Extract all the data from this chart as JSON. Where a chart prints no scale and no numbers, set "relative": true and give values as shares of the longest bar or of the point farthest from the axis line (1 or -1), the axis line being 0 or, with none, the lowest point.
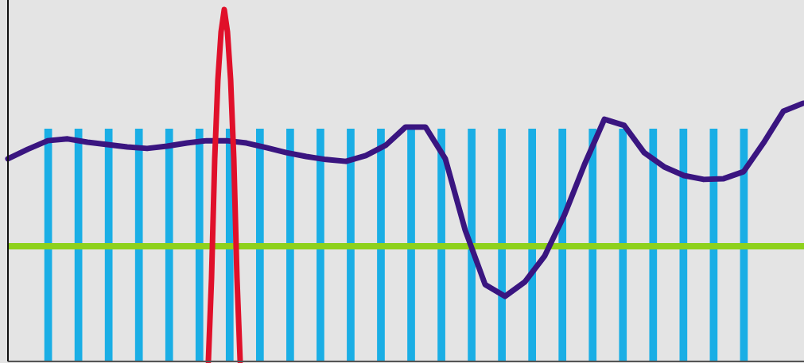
{
  "chart_data": [
    {
      "type": "bar",
      "relative": true,
      "color": "#1aaee5",
      "categories": [
        null,
        null,
        null,
        null,
        null,
        null,
        null,
        null,
        null,
        null,
        null,
        null,
        null,
        null,
        null,
        null,
        null,
        null,
        null,
        null,
        null,
        null,
        null,
        null
      ],
      "values": [
        1,
        1,
        1,
        1,
        1,
        1,
        1,
        1,
        1,
        1,
        1,
        1,
        1,
        1,
        1,
        1,
        1,
        1,
        1,
        1,
        1,
        1,
        1,
        1
      ]
    },
    {
      "type": "line",
      "relative": true,
      "color": "#3a1580",
      "categories": [
        null,
        null,
        null,
        null,
        null,
        null,
        null,
        null,
        null,
        null,
        null,
        null,
        null,
        null,
        null,
        null,
        null,
        null,
        null,
        null,
        null,
        null,
        null,
        null,
        null,
        null,
        null,
        null,
        null,
        null,
        null,
        null,
        null,
        null,
        null,
        null,
        null,
        null,
        null,
        null,
        null
      ],
      "values": [
        0.785,
        0.822,
        0.855,
        0.862,
        0.849,
        0.84,
        0.831,
        0.825,
        0.834,
        0.846,
        0.855,
        0.855,
        0.846,
        0.828,
        0.809,
        0.794,
        0.782,
        0.775,
        0.797,
        0.837,
        0.908,
        0.908,
        0.785,
        0.508,
        0.298,
        0.252,
        0.308,
        0.409,
        0.569,
        0.763,
        0.938,
        0.914,
        0.809,
        0.754,
        0.72,
        0.705,
        0.708,
        0.735,
        0.846,
        0.969,
        1
      ],
      "ref_lines": [
        {
          "axis": "y",
          "value": 0.446,
          "color": "#8ed11c"
        }
      ]
    },
    {
      "type": "line",
      "relative": true,
      "color": "#e0102a",
      "categories": [
        null,
        null,
        null,
        null,
        null,
        null,
        null,
        null,
        null,
        null,
        null
      ],
      "values": [
        0,
        0.237,
        0.576,
        0.801,
        0.937,
        1,
        0.937,
        0.801,
        0.576,
        0.237,
        0
      ]
    }
  ]
}
